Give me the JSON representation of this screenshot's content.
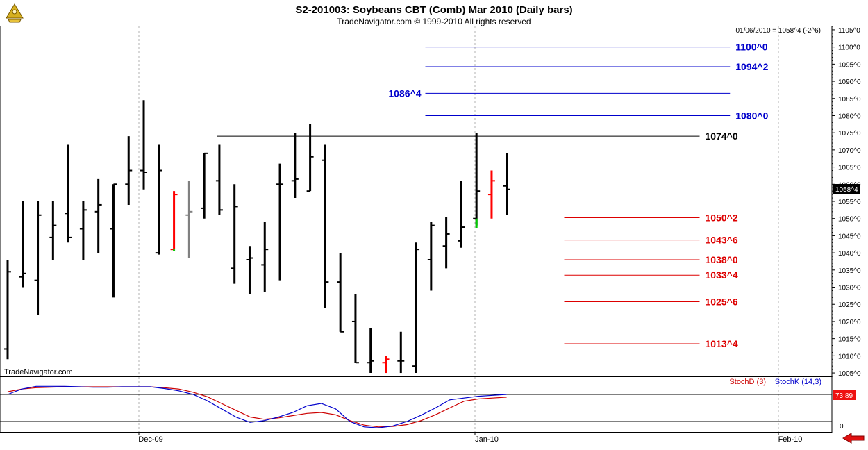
{
  "header": {
    "title": "S2-201003:  Soybeans CBT (Comb) Mar 2010  (Daily bars)",
    "subtitle": "TradeNavigator.com © 1999-2010 All rights reserved"
  },
  "info_line": "01/06/2010 = 1058^4 (-2^6)",
  "watermark": "TradeNavigator.com",
  "price_badge": "1058^4",
  "lower_badge": "73.89",
  "indicator": {
    "stochd_label": "StochD (3)",
    "stochk_label": "StochK (14,3)"
  },
  "colors": {
    "bar_black": "#000000",
    "bar_red": "#ff0000",
    "bar_gray": "#808080",
    "bar_green": "#00cc00",
    "level_blue": "#0000cc",
    "level_red": "#dd0000",
    "stoch_d": "#cc0000",
    "stoch_k": "#0000cc",
    "arrow": "#e01010"
  },
  "icons": {
    "logo": "sextant-icon",
    "scroll": "left-arrow-icon"
  },
  "chart_data": {
    "type": "ohlc",
    "y_axis": {
      "range": [
        1004,
        1106
      ],
      "ticks": [
        "1105^0",
        "1100^0",
        "1095^0",
        "1090^0",
        "1085^0",
        "1080^0",
        "1075^0",
        "1070^0",
        "1065^0",
        "1060^0",
        "1055^0",
        "1050^0",
        "1045^0",
        "1040^0",
        "1035^0",
        "1030^0",
        "1025^0",
        "1020^0",
        "1015^0",
        "1010^0",
        "1005^0"
      ]
    },
    "x_axis": {
      "labels": [
        "Dec-09",
        "Jan-10",
        "Feb-10"
      ]
    },
    "bars": [
      {
        "o": 1012,
        "h": 1038,
        "l": 1009,
        "c": 1034.5,
        "color": "black"
      },
      {
        "o": 1033,
        "h": 1055,
        "l": 1030,
        "c": 1034,
        "color": "black"
      },
      {
        "o": 1032,
        "h": 1055,
        "l": 1022,
        "c": 1051,
        "color": "black"
      },
      {
        "o": 1044.5,
        "h": 1055,
        "l": 1038,
        "c": 1048,
        "color": "black"
      },
      {
        "o": 1051.5,
        "h": 1071.5,
        "l": 1043,
        "c": 1044.5,
        "color": "black"
      },
      {
        "o": 1047,
        "h": 1055,
        "l": 1038,
        "c": 1052.5,
        "color": "black"
      },
      {
        "o": 1052,
        "h": 1061.5,
        "l": 1040,
        "c": 1054,
        "color": "black"
      },
      {
        "o": 1047,
        "h": 1060,
        "l": 1027,
        "c": 1060,
        "color": "black"
      },
      {
        "o": 1060,
        "h": 1074,
        "l": 1054,
        "c": 1064,
        "color": "black"
      },
      {
        "o": 1064,
        "h": 1084.5,
        "l": 1058.5,
        "c": 1063.5,
        "color": "black"
      },
      {
        "o": 1040,
        "h": 1071.5,
        "l": 1039.5,
        "c": 1064,
        "color": "black"
      },
      {
        "o": 1041,
        "h": 1058,
        "l": 1041,
        "c": 1057,
        "color": "red"
      },
      {
        "o": 1051,
        "h": 1061,
        "l": 1038.5,
        "c": 1052,
        "color": "gray"
      },
      {
        "o": 1053,
        "h": 1069,
        "l": 1050,
        "c": 1069,
        "color": "black"
      },
      {
        "o": 1061,
        "h": 1071.5,
        "l": 1051,
        "c": 1052.5,
        "color": "black"
      },
      {
        "o": 1035.5,
        "h": 1060,
        "l": 1031,
        "c": 1053.5,
        "color": "black"
      },
      {
        "o": 1038,
        "h": 1042,
        "l": 1028,
        "c": 1038.5,
        "color": "black"
      },
      {
        "o": 1036.5,
        "h": 1049,
        "l": 1028.5,
        "c": 1041,
        "color": "black"
      },
      {
        "o": 1060,
        "h": 1066,
        "l": 1032,
        "c": 1060,
        "color": "black"
      },
      {
        "o": 1061,
        "h": 1075,
        "l": 1056,
        "c": 1061.5,
        "color": "black"
      },
      {
        "o": 1058,
        "h": 1077.5,
        "l": 1058,
        "c": 1068,
        "color": "black"
      },
      {
        "o": 1067,
        "h": 1071.5,
        "l": 1024,
        "c": 1031.5,
        "color": "black"
      },
      {
        "o": 1031.5,
        "h": 1040,
        "l": 1017,
        "c": 1017,
        "color": "black"
      },
      {
        "o": 1020,
        "h": 1028,
        "l": 1008,
        "c": 1008,
        "color": "black"
      },
      {
        "o": 1008,
        "h": 1018,
        "l": 1005,
        "c": 1008.5,
        "color": "black"
      },
      {
        "o": 1008,
        "h": 1010,
        "l": 1005,
        "c": 1009,
        "color": "red"
      },
      {
        "o": 1008.5,
        "h": 1017,
        "l": 1005,
        "c": 1008.5,
        "color": "black"
      },
      {
        "o": 1007,
        "h": 1043,
        "l": 1005,
        "c": 1041,
        "color": "black"
      },
      {
        "o": 1038,
        "h": 1049,
        "l": 1029,
        "c": 1048,
        "color": "black"
      },
      {
        "o": 1042,
        "h": 1050.5,
        "l": 1035.5,
        "c": 1045.5,
        "color": "black"
      },
      {
        "o": 1043.5,
        "h": 1061,
        "l": 1041.5,
        "c": 1047.5,
        "color": "black"
      },
      {
        "o": 1050,
        "h": 1075,
        "l": 1048,
        "c": 1058,
        "color": "black"
      },
      {
        "o": 1057,
        "h": 1064,
        "l": 1050,
        "c": 1061,
        "color": "red"
      },
      {
        "o": 1059.5,
        "h": 1069,
        "l": 1051,
        "c": 1058.5,
        "color": "black"
      }
    ],
    "levels": [
      {
        "label": "1100^0",
        "value": 1100,
        "color": "blue",
        "x_start": 0.49,
        "x_end": 0.985,
        "label_side": "right"
      },
      {
        "label": "1094^2",
        "value": 1094.25,
        "color": "blue",
        "x_start": 0.49,
        "x_end": 0.985,
        "label_side": "right"
      },
      {
        "label": "1086^4",
        "value": 1086.5,
        "color": "blue",
        "x_start": 0.49,
        "x_end": 0.985,
        "label_side": "left"
      },
      {
        "label": "1080^0",
        "value": 1080,
        "color": "blue",
        "x_start": 0.49,
        "x_end": 0.985,
        "label_side": "right"
      },
      {
        "label": "1074^0",
        "value": 1074,
        "color": "black",
        "x_start": 0.25,
        "x_end": 0.83,
        "label_side": "right"
      },
      {
        "label": "1050^2",
        "value": 1050.25,
        "color": "red",
        "x_start": 0.65,
        "x_end": 0.83,
        "label_side": "right"
      },
      {
        "label": "1043^6",
        "value": 1043.75,
        "color": "red",
        "x_start": 0.65,
        "x_end": 0.83,
        "label_side": "right"
      },
      {
        "label": "1038^0",
        "value": 1038,
        "color": "red",
        "x_start": 0.65,
        "x_end": 0.83,
        "label_side": "right"
      },
      {
        "label": "1033^4",
        "value": 1033.5,
        "color": "red",
        "x_start": 0.65,
        "x_end": 0.83,
        "label_side": "right"
      },
      {
        "label": "1025^6",
        "value": 1025.75,
        "color": "red",
        "x_start": 0.65,
        "x_end": 0.83,
        "label_side": "right"
      },
      {
        "label": "1013^4",
        "value": 1013.5,
        "color": "red",
        "x_start": 0.65,
        "x_end": 0.83,
        "label_side": "right"
      }
    ],
    "stochastics": {
      "y_range": [
        0,
        100
      ],
      "lines": [
        80,
        20
      ],
      "tick_label": "0",
      "stoch_d": [
        86,
        92,
        95,
        96,
        97,
        97,
        97,
        97,
        97,
        97,
        97,
        95,
        92,
        85,
        75,
        60,
        45,
        30,
        25,
        28,
        33,
        38,
        40,
        35,
        22,
        12,
        8,
        9,
        13,
        22,
        35,
        50,
        65,
        70,
        72,
        74
      ],
      "stoch_k": [
        80,
        92,
        98,
        98,
        98,
        97,
        96,
        96,
        97,
        97,
        97,
        93,
        88,
        80,
        66,
        48,
        30,
        18,
        22,
        30,
        40,
        55,
        60,
        48,
        20,
        8,
        6,
        10,
        20,
        34,
        50,
        68,
        72,
        76,
        78,
        80
      ]
    }
  }
}
